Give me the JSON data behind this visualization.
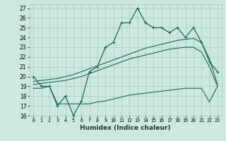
{
  "xlabel": "Humidex (Indice chaleur)",
  "ylabel": "",
  "xlim": [
    -0.5,
    23.5
  ],
  "ylim": [
    16,
    27.4
  ],
  "yticks": [
    16,
    17,
    18,
    19,
    20,
    21,
    22,
    23,
    24,
    25,
    26,
    27
  ],
  "xticks": [
    0,
    1,
    2,
    3,
    4,
    5,
    6,
    7,
    8,
    9,
    10,
    11,
    12,
    13,
    14,
    15,
    16,
    17,
    18,
    19,
    20,
    21,
    22,
    23
  ],
  "bg_color": "#cce8e0",
  "grid_color": "#aaccbb",
  "line_color": "#1a6b5a",
  "line_main": [
    20,
    19,
    19,
    17,
    18,
    16,
    17.5,
    20.5,
    21,
    23,
    23.5,
    25.5,
    25.5,
    27,
    25.5,
    25,
    25,
    24.5,
    25,
    24,
    25,
    23.5,
    21.5,
    20.5
  ],
  "line_trend1": [
    19.5,
    19.6,
    19.7,
    19.8,
    20.0,
    20.2,
    20.5,
    20.8,
    21.1,
    21.4,
    21.7,
    22.0,
    22.3,
    22.6,
    22.9,
    23.1,
    23.3,
    23.5,
    23.7,
    23.8,
    23.9,
    23.5,
    21.8,
    19.2
  ],
  "line_trend2": [
    19.2,
    19.3,
    19.4,
    19.5,
    19.6,
    19.8,
    20.0,
    20.3,
    20.6,
    20.9,
    21.2,
    21.5,
    21.8,
    22.0,
    22.2,
    22.4,
    22.6,
    22.8,
    22.9,
    23.0,
    23.0,
    22.5,
    21.0,
    19.0
  ],
  "line_lower": [
    18.8,
    18.8,
    19.0,
    17.2,
    17.2,
    17.2,
    17.2,
    17.2,
    17.4,
    17.5,
    17.7,
    17.9,
    18.1,
    18.2,
    18.3,
    18.4,
    18.5,
    18.6,
    18.7,
    18.8,
    18.8,
    18.8,
    17.4,
    19.0
  ]
}
